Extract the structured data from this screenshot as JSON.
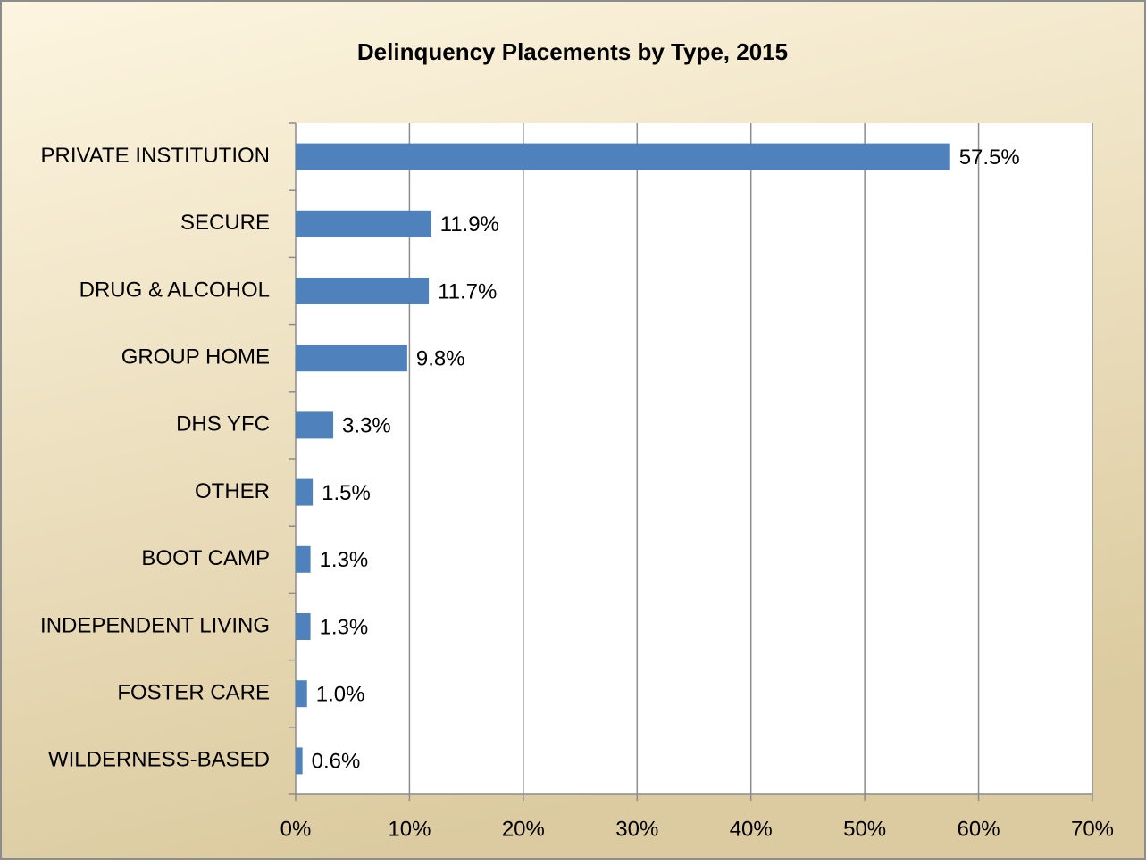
{
  "chart_data": {
    "type": "bar",
    "orientation": "horizontal",
    "title": "Delinquency Placements by Type, 2015",
    "categories": [
      "PRIVATE INSTITUTION",
      "SECURE",
      "DRUG & ALCOHOL",
      "GROUP HOME",
      "DHS YFC",
      "OTHER",
      "BOOT CAMP",
      "INDEPENDENT LIVING",
      "FOSTER CARE",
      "WILDERNESS-BASED"
    ],
    "values": [
      57.5,
      11.9,
      11.7,
      9.8,
      3.3,
      1.5,
      1.3,
      1.3,
      1.0,
      0.6
    ],
    "value_labels": [
      "57.5%",
      "11.9%",
      "11.7%",
      "9.8%",
      "3.3%",
      "1.5%",
      "1.3%",
      "1.3%",
      "1.0%",
      "0.6%"
    ],
    "color": "#4f81bd",
    "xlim": [
      0,
      70
    ],
    "xticks": [
      {
        "value": 0,
        "label": "0%"
      },
      {
        "value": 10,
        "label": "10%"
      },
      {
        "value": 20,
        "label": "20%"
      },
      {
        "value": 30,
        "label": "30%"
      },
      {
        "value": 40,
        "label": "40%"
      },
      {
        "value": 50,
        "label": "50%"
      },
      {
        "value": 60,
        "label": "60%"
      },
      {
        "value": 70,
        "label": "70%"
      }
    ],
    "grid": true
  }
}
